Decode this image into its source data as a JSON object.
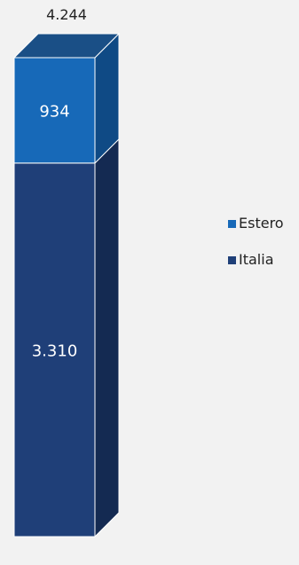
{
  "chart_data": {
    "type": "bar",
    "stacked": true,
    "three_d": true,
    "categories": [
      ""
    ],
    "series": [
      {
        "name": "Italia",
        "values": [
          3310
        ],
        "label": "3.310",
        "color_front": "#1f3f78",
        "color_side": "#142a52",
        "color_top": "#2a4d8c"
      },
      {
        "name": "Estero",
        "values": [
          934
        ],
        "label": "934",
        "color_front": "#1769b8",
        "color_side": "#0f4a85",
        "color_top": "#1a4f86"
      }
    ],
    "total": 4244,
    "total_label": "4.244",
    "legend_position": "right",
    "legend_order": [
      "Estero",
      "Italia"
    ],
    "grid": false
  }
}
